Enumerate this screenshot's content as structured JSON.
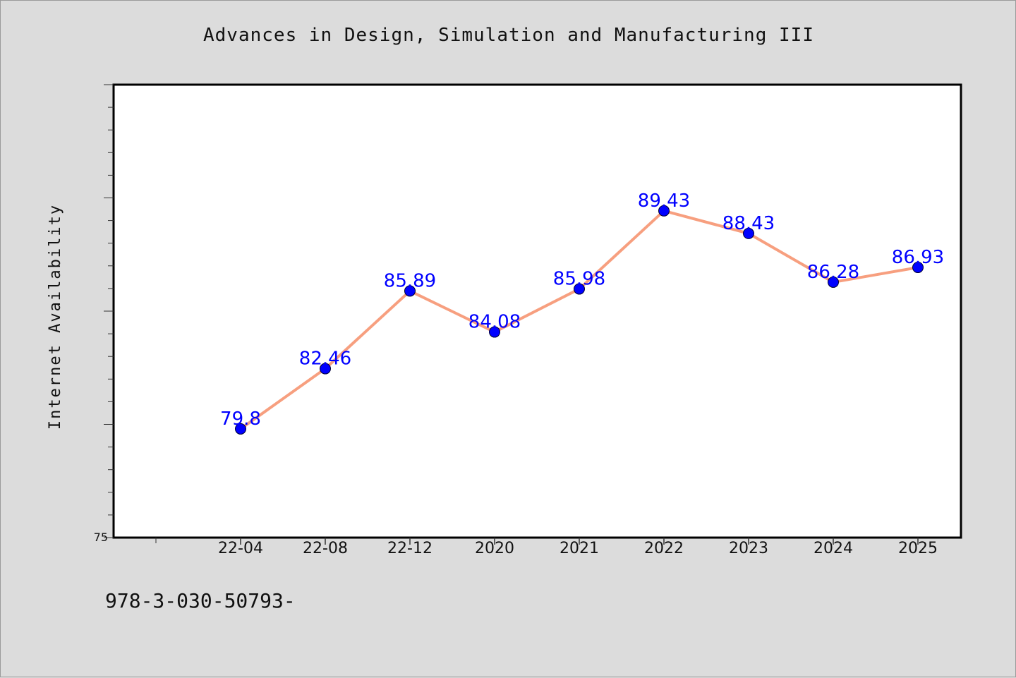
{
  "title": "Advances in Design, Simulation and Manufacturing III",
  "footer_text": "978-3-030-50793-",
  "colors": {
    "background": "#dcdcdc",
    "plot_bg": "#ffffff",
    "line": "#f79f7f",
    "marker": "#0000ff",
    "labels": "#0000ff"
  },
  "chart_data": {
    "type": "line",
    "title": "Advances in Design, Simulation and Manufacturing III",
    "xlabel": "",
    "ylabel": "Internet Availability",
    "categories": [
      "22-04",
      "22-08",
      "22-12",
      "2020",
      "2021",
      "2022",
      "2023",
      "2024",
      "2025"
    ],
    "values": [
      79.8,
      82.46,
      85.89,
      84.08,
      85.98,
      89.43,
      88.43,
      86.28,
      86.93
    ],
    "data_labels": [
      "79.8",
      "82.46",
      "85.89",
      "84.08",
      "85.98",
      "89.43",
      "88.43",
      "86.28",
      "86.93"
    ],
    "y_tick_labels": [
      "75"
    ],
    "ylim": [
      75,
      95
    ],
    "grid": false,
    "legend": "none"
  }
}
